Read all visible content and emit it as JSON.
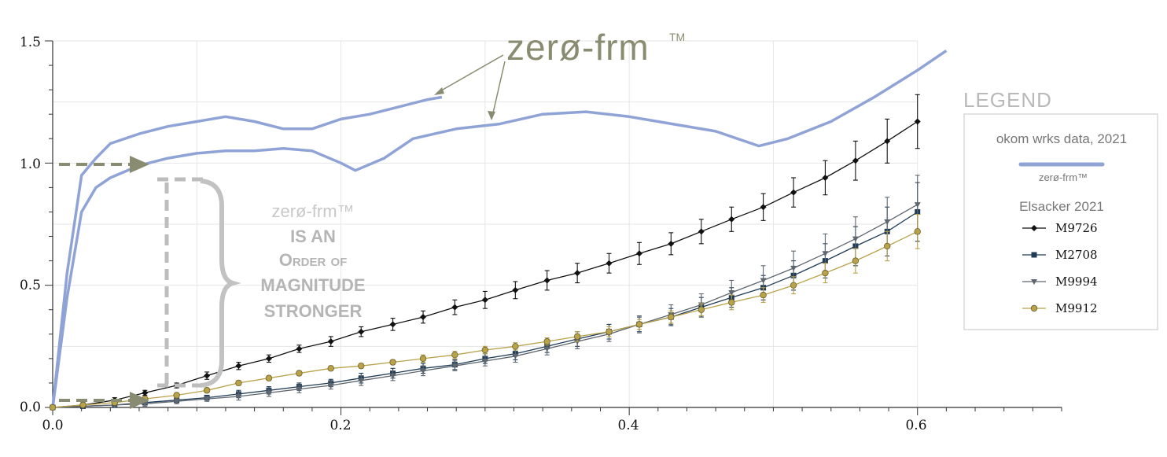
{
  "chart_data": {
    "type": "line",
    "xlim": [
      0.0,
      0.7
    ],
    "ylim": [
      0.0,
      1.5
    ],
    "x_ticks": [
      "0.0",
      "0.2",
      "0.4",
      "0.6"
    ],
    "y_ticks": [
      "0.0",
      "0.5",
      "1.0",
      "1.5"
    ],
    "grid": true,
    "legend_position": "right",
    "legend_title": "LEGEND",
    "legend_group1": "okom wrks data, 2021",
    "legend_group2": "Elsacker 2021",
    "zero_series": [
      {
        "label": "zerø-frm™",
        "color": "#8fa3d6",
        "x": [
          0.0,
          0.01,
          0.02,
          0.03,
          0.04,
          0.06,
          0.08,
          0.1,
          0.12,
          0.14,
          0.16,
          0.18,
          0.2,
          0.22,
          0.24,
          0.26,
          0.27
        ],
        "y": [
          0.0,
          0.55,
          0.95,
          1.02,
          1.08,
          1.12,
          1.15,
          1.17,
          1.19,
          1.17,
          1.14,
          1.14,
          1.18,
          1.2,
          1.23,
          1.26,
          1.27
        ]
      },
      {
        "label": "zerø-frm™",
        "color": "#8fa3d6",
        "x": [
          0.0,
          0.01,
          0.02,
          0.03,
          0.04,
          0.06,
          0.08,
          0.1,
          0.12,
          0.14,
          0.16,
          0.18,
          0.2,
          0.21,
          0.23,
          0.25,
          0.28,
          0.31,
          0.34,
          0.37,
          0.4,
          0.43,
          0.46,
          0.49,
          0.51,
          0.54,
          0.57,
          0.6,
          0.62
        ],
        "y": [
          0.0,
          0.45,
          0.8,
          0.9,
          0.94,
          0.99,
          1.02,
          1.04,
          1.05,
          1.05,
          1.06,
          1.05,
          1.0,
          0.97,
          1.02,
          1.1,
          1.14,
          1.16,
          1.2,
          1.21,
          1.19,
          1.16,
          1.13,
          1.07,
          1.1,
          1.17,
          1.27,
          1.38,
          1.46
        ]
      }
    ],
    "x_common": [
      0.0,
      0.021,
      0.043,
      0.064,
      0.086,
      0.107,
      0.129,
      0.15,
      0.171,
      0.193,
      0.214,
      0.236,
      0.257,
      0.279,
      0.3,
      0.321,
      0.343,
      0.364,
      0.386,
      0.407,
      0.429,
      0.45,
      0.471,
      0.493,
      0.514,
      0.536,
      0.557,
      0.579,
      0.6
    ],
    "series": [
      {
        "name": "M9726",
        "color": "#111111",
        "marker": "diamond",
        "values": [
          0.0,
          0.01,
          0.03,
          0.06,
          0.09,
          0.13,
          0.17,
          0.2,
          0.24,
          0.27,
          0.31,
          0.34,
          0.37,
          0.41,
          0.44,
          0.48,
          0.52,
          0.55,
          0.59,
          0.63,
          0.67,
          0.72,
          0.77,
          0.82,
          0.88,
          0.94,
          1.01,
          1.09,
          1.17
        ],
        "err": [
          0.0,
          0.01,
          0.01,
          0.01,
          0.01,
          0.015,
          0.015,
          0.015,
          0.015,
          0.02,
          0.02,
          0.025,
          0.025,
          0.03,
          0.035,
          0.035,
          0.04,
          0.04,
          0.04,
          0.045,
          0.045,
          0.05,
          0.05,
          0.055,
          0.06,
          0.07,
          0.08,
          0.09,
          0.11
        ]
      },
      {
        "name": "M2708",
        "color": "#1f3b55",
        "marker": "square",
        "values": [
          0.0,
          0.005,
          0.01,
          0.02,
          0.03,
          0.04,
          0.055,
          0.07,
          0.085,
          0.1,
          0.12,
          0.14,
          0.16,
          0.175,
          0.2,
          0.22,
          0.25,
          0.28,
          0.31,
          0.34,
          0.37,
          0.41,
          0.45,
          0.49,
          0.54,
          0.6,
          0.66,
          0.72,
          0.8
        ],
        "err": [
          0.0,
          0.005,
          0.005,
          0.01,
          0.01,
          0.01,
          0.015,
          0.015,
          0.015,
          0.015,
          0.02,
          0.02,
          0.02,
          0.02,
          0.02,
          0.025,
          0.025,
          0.03,
          0.03,
          0.03,
          0.035,
          0.04,
          0.04,
          0.05,
          0.06,
          0.07,
          0.08,
          0.1,
          0.12
        ]
      },
      {
        "name": "M9994",
        "color": "#5e6670",
        "marker": "triangle",
        "values": [
          0.0,
          0.005,
          0.01,
          0.015,
          0.025,
          0.035,
          0.045,
          0.06,
          0.075,
          0.09,
          0.11,
          0.13,
          0.15,
          0.17,
          0.19,
          0.21,
          0.24,
          0.27,
          0.3,
          0.34,
          0.38,
          0.42,
          0.47,
          0.52,
          0.57,
          0.63,
          0.69,
          0.76,
          0.83
        ],
        "err": [
          0.0,
          0.005,
          0.005,
          0.01,
          0.01,
          0.01,
          0.015,
          0.015,
          0.015,
          0.015,
          0.02,
          0.02,
          0.02,
          0.02,
          0.02,
          0.025,
          0.025,
          0.03,
          0.03,
          0.035,
          0.04,
          0.045,
          0.05,
          0.06,
          0.07,
          0.08,
          0.09,
          0.1,
          0.12
        ]
      },
      {
        "name": "M9912",
        "color": "#b8a24a",
        "marker": "circle",
        "values": [
          0.0,
          0.01,
          0.02,
          0.035,
          0.05,
          0.07,
          0.1,
          0.12,
          0.14,
          0.16,
          0.17,
          0.185,
          0.2,
          0.215,
          0.235,
          0.25,
          0.27,
          0.29,
          0.31,
          0.34,
          0.37,
          0.4,
          0.43,
          0.46,
          0.5,
          0.55,
          0.6,
          0.66,
          0.72
        ],
        "err": [
          0.0,
          0.005,
          0.005,
          0.01,
          0.01,
          0.01,
          0.01,
          0.01,
          0.01,
          0.01,
          0.01,
          0.01,
          0.015,
          0.015,
          0.015,
          0.015,
          0.015,
          0.02,
          0.02,
          0.02,
          0.025,
          0.025,
          0.03,
          0.03,
          0.035,
          0.04,
          0.05,
          0.06,
          0.07
        ]
      }
    ]
  },
  "annotations": {
    "title_word": "zerø-frm",
    "tm": "TM",
    "claim_small": "zerø-frm™",
    "claim_line1": "IS AN",
    "claim_line2": "Order of",
    "claim_line3": "MAGNITUDE",
    "claim_line4": "STRONGER",
    "legend_zero_label": "zerø-frm™"
  },
  "colors": {
    "zero_line": "#8fa3d6",
    "annotation_olive": "#8a8c72",
    "dashed_gray": "#bdbdbd"
  }
}
